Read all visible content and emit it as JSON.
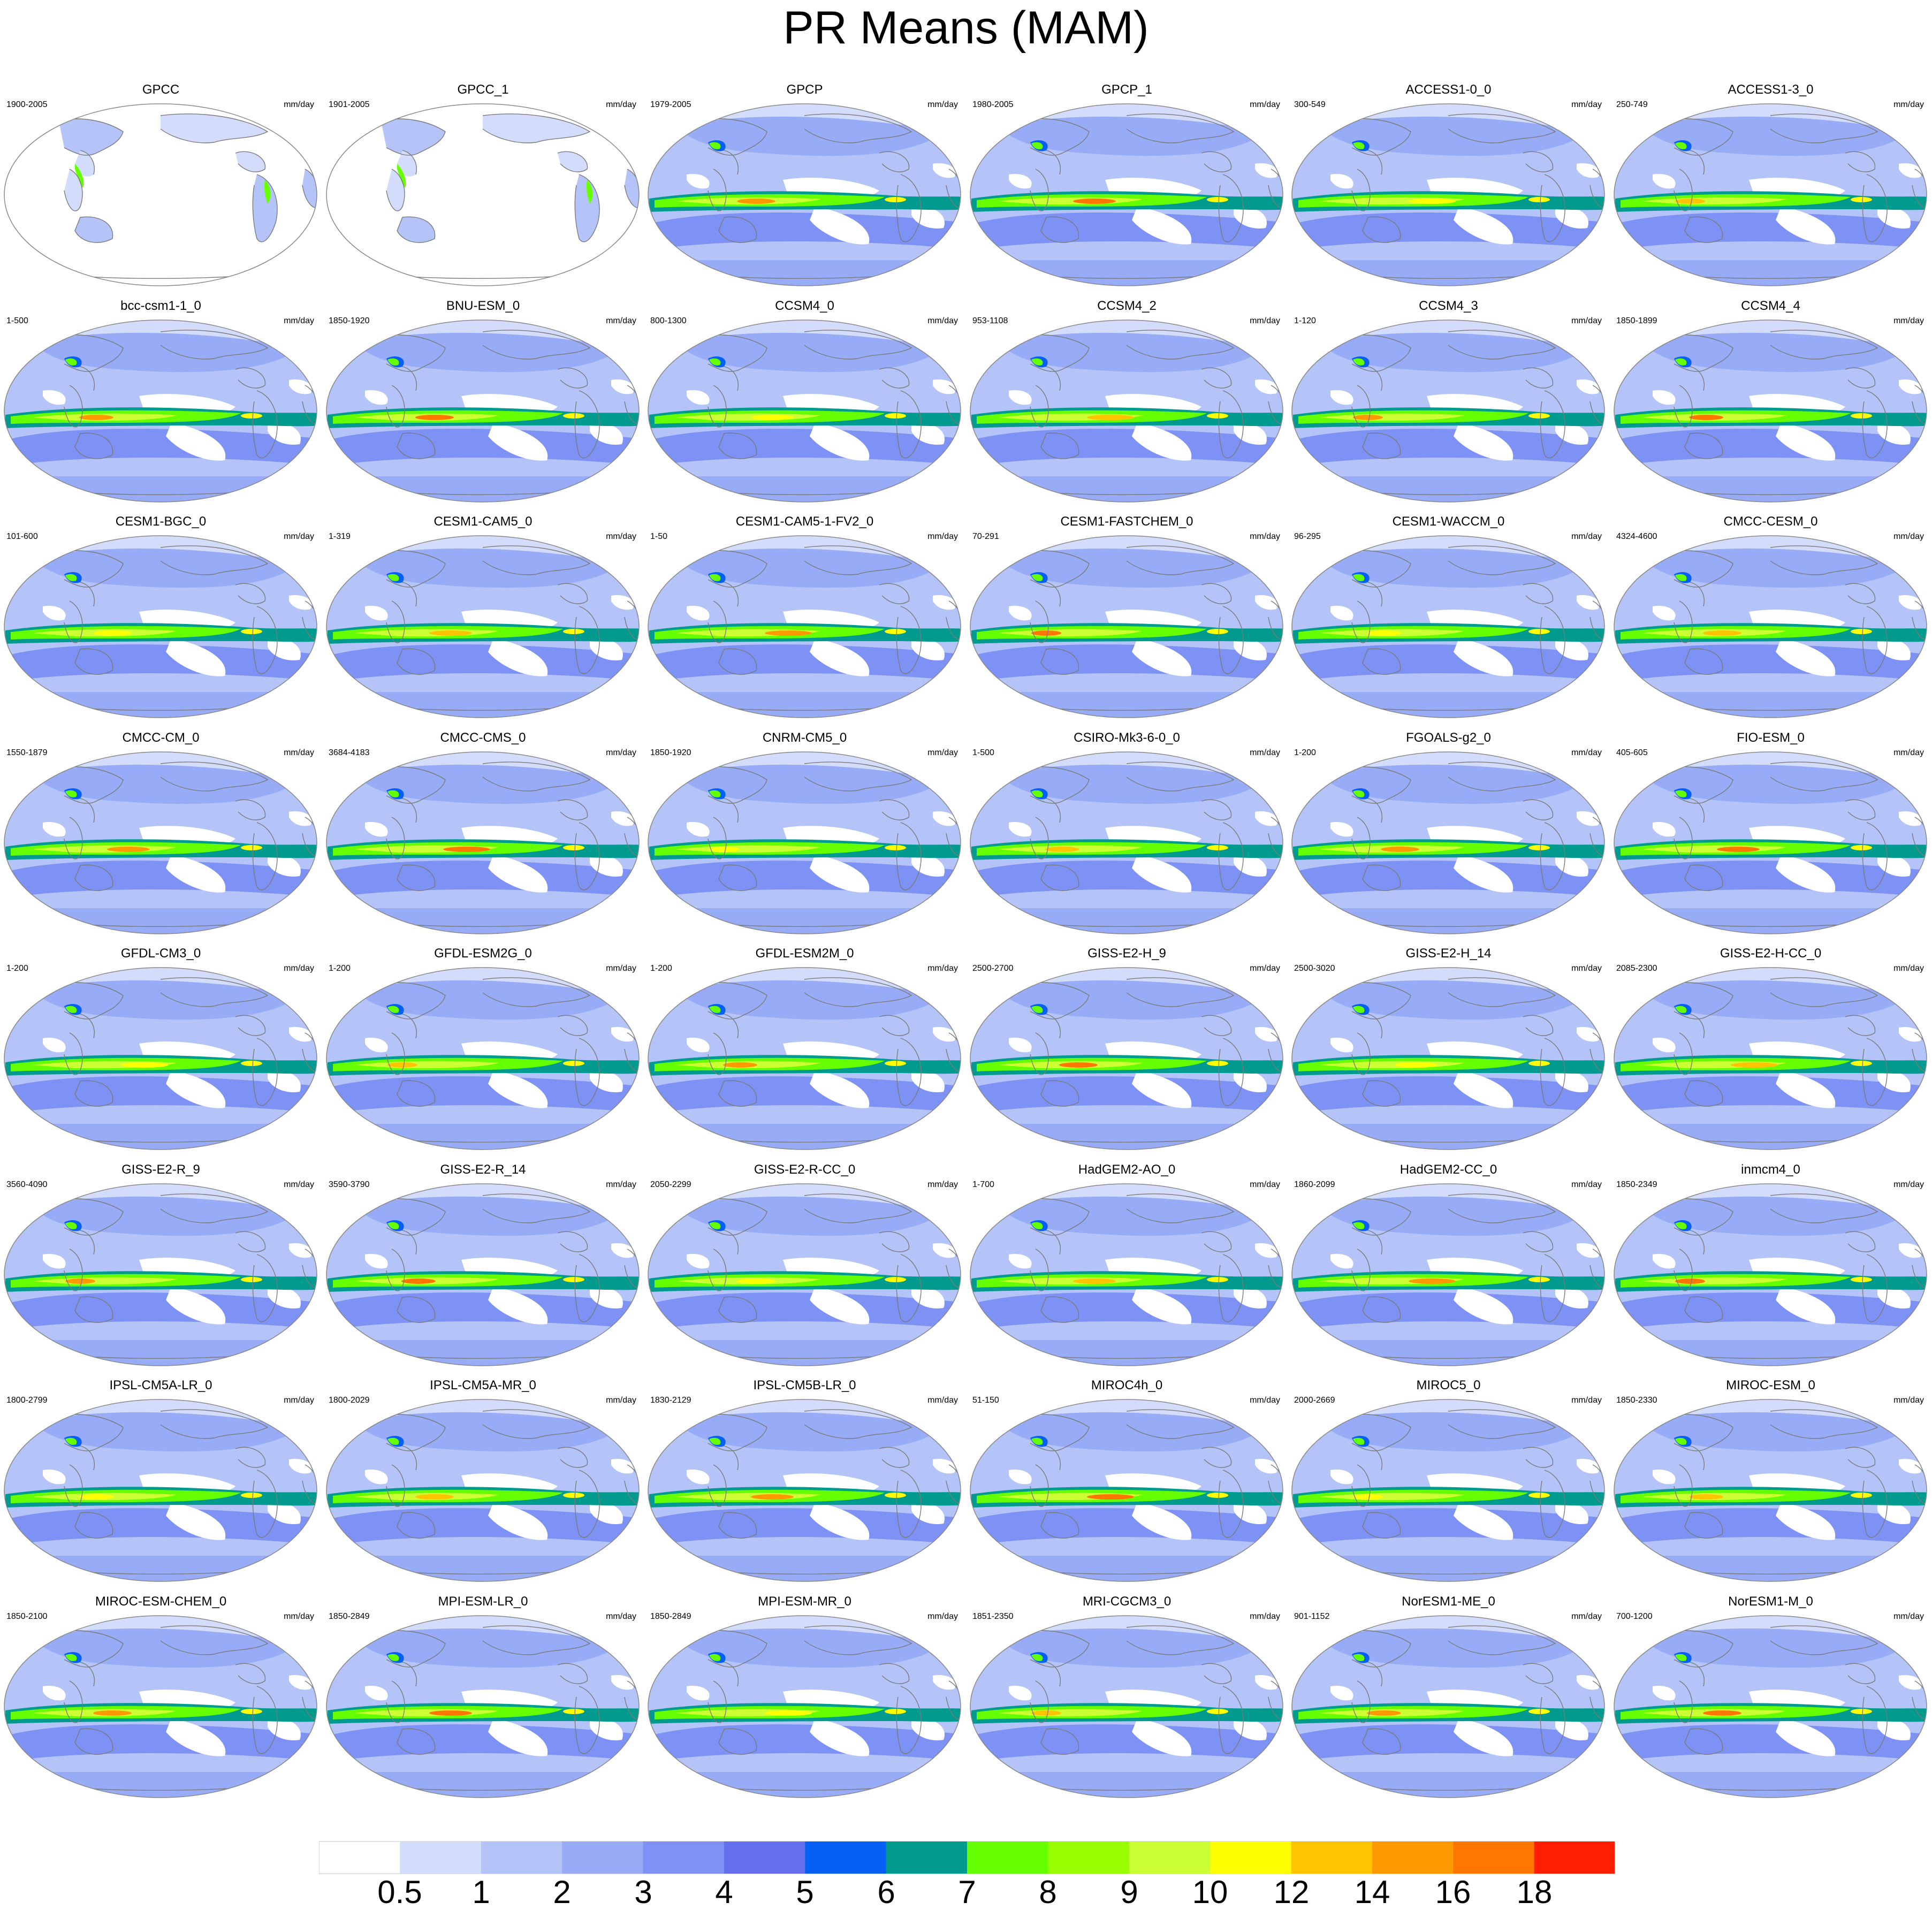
{
  "title": "PR Means (MAM)",
  "units": "mm/day",
  "colorbar": {
    "levels": [
      "0.5",
      "1",
      "2",
      "3",
      "4",
      "5",
      "6",
      "7",
      "8",
      "9",
      "10",
      "12",
      "14",
      "16",
      "18"
    ],
    "colors": [
      "#ffffff",
      "#d3dcfb",
      "#b4c3f8",
      "#97abf6",
      "#7d92f4",
      "#6470ee",
      "#0760f5",
      "#009b8e",
      "#66ff00",
      "#99ff00",
      "#ccff33",
      "#ffff00",
      "#ffc400",
      "#ff9900",
      "#ff7700",
      "#ff1e00"
    ]
  },
  "panels": [
    {
      "name": "GPCC",
      "years": "1900-2005"
    },
    {
      "name": "GPCC_1",
      "years": "1901-2005"
    },
    {
      "name": "GPCP",
      "years": "1979-2005"
    },
    {
      "name": "GPCP_1",
      "years": "1980-2005"
    },
    {
      "name": "ACCESS1-0_0",
      "years": "300-549"
    },
    {
      "name": "ACCESS1-3_0",
      "years": "250-749"
    },
    {
      "name": "bcc-csm1-1_0",
      "years": "1-500"
    },
    {
      "name": "BNU-ESM_0",
      "years": "1850-1920"
    },
    {
      "name": "CCSM4_0",
      "years": "800-1300"
    },
    {
      "name": "CCSM4_2",
      "years": "953-1108"
    },
    {
      "name": "CCSM4_3",
      "years": "1-120"
    },
    {
      "name": "CCSM4_4",
      "years": "1850-1899"
    },
    {
      "name": "CESM1-BGC_0",
      "years": "101-600"
    },
    {
      "name": "CESM1-CAM5_0",
      "years": "1-319"
    },
    {
      "name": "CESM1-CAM5-1-FV2_0",
      "years": "1-50"
    },
    {
      "name": "CESM1-FASTCHEM_0",
      "years": "70-291"
    },
    {
      "name": "CESM1-WACCM_0",
      "years": "96-295"
    },
    {
      "name": "CMCC-CESM_0",
      "years": "4324-4600"
    },
    {
      "name": "CMCC-CM_0",
      "years": "1550-1879"
    },
    {
      "name": "CMCC-CMS_0",
      "years": "3684-4183"
    },
    {
      "name": "CNRM-CM5_0",
      "years": "1850-1920"
    },
    {
      "name": "CSIRO-Mk3-6-0_0",
      "years": "1-500"
    },
    {
      "name": "FGOALS-g2_0",
      "years": "1-200"
    },
    {
      "name": "FIO-ESM_0",
      "years": "405-605"
    },
    {
      "name": "GFDL-CM3_0",
      "years": "1-200"
    },
    {
      "name": "GFDL-ESM2G_0",
      "years": "1-200"
    },
    {
      "name": "GFDL-ESM2M_0",
      "years": "1-200"
    },
    {
      "name": "GISS-E2-H_9",
      "years": "2500-2700"
    },
    {
      "name": "GISS-E2-H_14",
      "years": "2500-3020"
    },
    {
      "name": "GISS-E2-H-CC_0",
      "years": "2085-2300"
    },
    {
      "name": "GISS-E2-R_9",
      "years": "3560-4090"
    },
    {
      "name": "GISS-E2-R_14",
      "years": "3590-3790"
    },
    {
      "name": "GISS-E2-R-CC_0",
      "years": "2050-2299"
    },
    {
      "name": "HadGEM2-AO_0",
      "years": "1-700"
    },
    {
      "name": "HadGEM2-CC_0",
      "years": "1860-2099"
    },
    {
      "name": "inmcm4_0",
      "years": "1850-2349"
    },
    {
      "name": "IPSL-CM5A-LR_0",
      "years": "1800-2799"
    },
    {
      "name": "IPSL-CM5A-MR_0",
      "years": "1800-2029"
    },
    {
      "name": "IPSL-CM5B-LR_0",
      "years": "1830-2129"
    },
    {
      "name": "MIROC4h_0",
      "years": "51-150"
    },
    {
      "name": "MIROC5_0",
      "years": "2000-2669"
    },
    {
      "name": "MIROC-ESM_0",
      "years": "1850-2330"
    },
    {
      "name": "MIROC-ESM-CHEM_0",
      "years": "1850-2100"
    },
    {
      "name": "MPI-ESM-LR_0",
      "years": "1850-2849"
    },
    {
      "name": "MPI-ESM-MR_0",
      "years": "1850-2849"
    },
    {
      "name": "MRI-CGCM3_0",
      "years": "1851-2350"
    },
    {
      "name": "NorESM1-ME_0",
      "years": "901-1152"
    },
    {
      "name": "NorESM1-M_0",
      "years": "700-1200"
    }
  ]
}
